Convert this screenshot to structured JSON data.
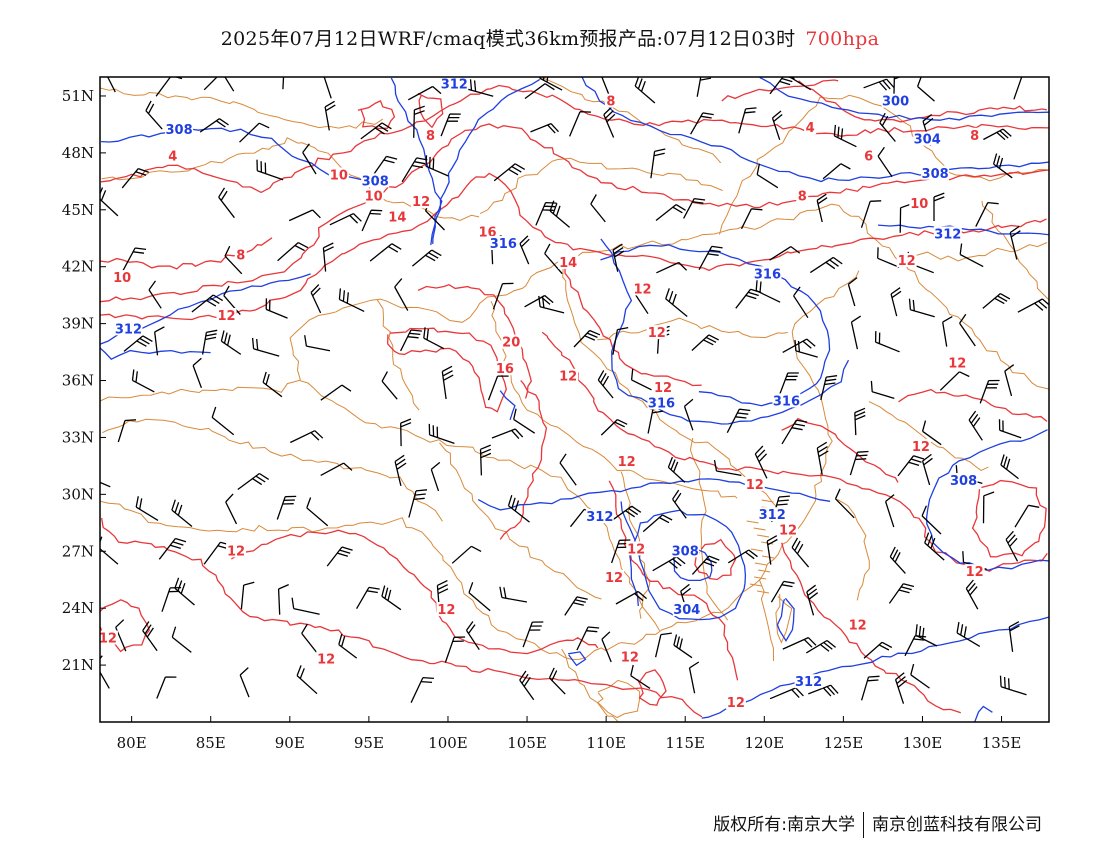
{
  "title": {
    "main": "2025年07月12日WRF/cmaq模式36km预报产品:07月12日03时",
    "level": "700hpa"
  },
  "colors": {
    "temperature": "#e8373b",
    "height": "#1f3fe0",
    "border": "#d98a3b",
    "wind": "#000000",
    "frame": "#000000"
  },
  "map": {
    "lon_range": [
      78,
      138
    ],
    "lat_range": [
      18,
      52
    ],
    "lon_ticks": [
      80,
      85,
      90,
      95,
      100,
      105,
      110,
      115,
      120,
      125,
      130,
      135
    ],
    "lat_ticks": [
      21,
      24,
      27,
      30,
      33,
      36,
      39,
      42,
      45,
      48,
      51
    ],
    "lon_labels": [
      "80E",
      "85E",
      "90E",
      "95E",
      "100E",
      "105E",
      "110E",
      "115E",
      "120E",
      "125E",
      "130E",
      "135E"
    ],
    "lat_labels": [
      "21N",
      "24N",
      "27N",
      "30N",
      "33N",
      "36N",
      "39N",
      "42N",
      "45N",
      "48N",
      "51N"
    ]
  },
  "height_labels": [
    {
      "text": "312",
      "lon": 100.4,
      "lat": 51.6
    },
    {
      "text": "300",
      "lon": 128.3,
      "lat": 50.7
    },
    {
      "text": "304",
      "lon": 130.3,
      "lat": 48.7
    },
    {
      "text": "308",
      "lon": 83.0,
      "lat": 49.2
    },
    {
      "text": "308",
      "lon": 95.4,
      "lat": 46.5
    },
    {
      "text": "308",
      "lon": 130.8,
      "lat": 46.9
    },
    {
      "text": "316",
      "lon": 103.5,
      "lat": 43.2
    },
    {
      "text": "312",
      "lon": 131.6,
      "lat": 43.7
    },
    {
      "text": "316",
      "lon": 120.2,
      "lat": 41.6
    },
    {
      "text": "312",
      "lon": 79.8,
      "lat": 38.7
    },
    {
      "text": "316",
      "lon": 113.5,
      "lat": 34.8
    },
    {
      "text": "316",
      "lon": 121.4,
      "lat": 34.9
    },
    {
      "text": "308",
      "lon": 132.6,
      "lat": 30.7
    },
    {
      "text": "312",
      "lon": 109.6,
      "lat": 28.8
    },
    {
      "text": "312",
      "lon": 120.5,
      "lat": 28.9
    },
    {
      "text": "308",
      "lon": 115.0,
      "lat": 27.0
    },
    {
      "text": "304",
      "lon": 115.1,
      "lat": 23.9
    },
    {
      "text": "312",
      "lon": 122.8,
      "lat": 20.1
    }
  ],
  "temp_labels": [
    {
      "text": "8",
      "lon": 110.3,
      "lat": 50.7
    },
    {
      "text": "8",
      "lon": 98.9,
      "lat": 48.9
    },
    {
      "text": "8",
      "lon": 133.3,
      "lat": 48.9
    },
    {
      "text": "4",
      "lon": 82.6,
      "lat": 47.8
    },
    {
      "text": "4",
      "lon": 122.9,
      "lat": 49.3
    },
    {
      "text": "6",
      "lon": 126.6,
      "lat": 47.8
    },
    {
      "text": "10",
      "lon": 93.1,
      "lat": 46.8
    },
    {
      "text": "12",
      "lon": 98.3,
      "lat": 45.4
    },
    {
      "text": "10",
      "lon": 95.3,
      "lat": 45.7
    },
    {
      "text": "14",
      "lon": 96.8,
      "lat": 44.6
    },
    {
      "text": "8",
      "lon": 122.4,
      "lat": 45.7
    },
    {
      "text": "10",
      "lon": 129.8,
      "lat": 45.3
    },
    {
      "text": "16",
      "lon": 102.5,
      "lat": 43.8
    },
    {
      "text": "8",
      "lon": 86.9,
      "lat": 42.6
    },
    {
      "text": "14",
      "lon": 107.6,
      "lat": 42.2
    },
    {
      "text": "12",
      "lon": 129.0,
      "lat": 42.3
    },
    {
      "text": "10",
      "lon": 79.4,
      "lat": 41.4
    },
    {
      "text": "12",
      "lon": 112.3,
      "lat": 40.8
    },
    {
      "text": "12",
      "lon": 86.0,
      "lat": 39.4
    },
    {
      "text": "12",
      "lon": 113.2,
      "lat": 38.5
    },
    {
      "text": "20",
      "lon": 104.0,
      "lat": 38.0
    },
    {
      "text": "16",
      "lon": 103.6,
      "lat": 36.6
    },
    {
      "text": "12",
      "lon": 107.6,
      "lat": 36.2
    },
    {
      "text": "12",
      "lon": 132.2,
      "lat": 36.9
    },
    {
      "text": "12",
      "lon": 113.6,
      "lat": 35.6
    },
    {
      "text": "12",
      "lon": 129.9,
      "lat": 32.5
    },
    {
      "text": "12",
      "lon": 111.3,
      "lat": 31.7
    },
    {
      "text": "12",
      "lon": 119.4,
      "lat": 30.5
    },
    {
      "text": "12",
      "lon": 121.5,
      "lat": 28.1
    },
    {
      "text": "12",
      "lon": 86.6,
      "lat": 27.0
    },
    {
      "text": "12",
      "lon": 111.9,
      "lat": 27.1
    },
    {
      "text": "12",
      "lon": 110.5,
      "lat": 25.6
    },
    {
      "text": "12",
      "lon": 133.3,
      "lat": 25.9
    },
    {
      "text": "12",
      "lon": 99.9,
      "lat": 23.9
    },
    {
      "text": "12",
      "lon": 125.9,
      "lat": 23.1
    },
    {
      "text": "12",
      "lon": 78.5,
      "lat": 22.4
    },
    {
      "text": "12",
      "lon": 92.3,
      "lat": 21.3
    },
    {
      "text": "12",
      "lon": 111.5,
      "lat": 21.4
    },
    {
      "text": "12",
      "lon": 118.2,
      "lat": 19.0
    }
  ],
  "footer": {
    "left": "版权所有:南京大学",
    "right": "南京创蓝科技有限公司"
  }
}
